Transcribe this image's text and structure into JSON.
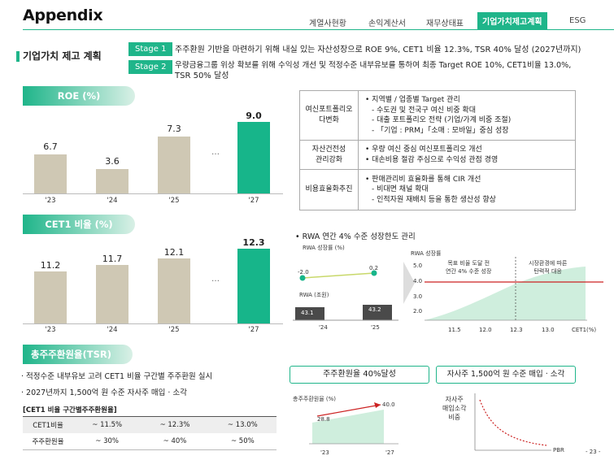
{
  "header": {
    "title": "Appendix",
    "nav": [
      "계열사현황",
      "손익계산서",
      "재무상태표",
      "기업가치제고계획",
      "ESG"
    ],
    "active_index": 3
  },
  "section": {
    "title": "기업가치 제고 계획",
    "stages": [
      {
        "label": "Stage 1",
        "text": "주주환원 기반을 마련하기 위해 내실 있는 자산성장으로 ROE 9%, CET1 비율 12.3%, TSR 40% 달성 (2027년까지)"
      },
      {
        "label": "Stage 2",
        "text_line1": "우량금융그룹 위상 확보를 위해 수익성 개선 및 적정수준 내부유보를 통하여 최종 Target ROE 10%, CET1비율 13.0%,",
        "text_line2": "TSR 50% 달성"
      }
    ]
  },
  "roe": {
    "heading": "ROE (%)",
    "categories": [
      "'23",
      "'24",
      "'25",
      "'27"
    ],
    "values": [
      "6.7",
      "3.6",
      "7.3",
      "9.0"
    ],
    "ellipsis": "…"
  },
  "strategy": [
    {
      "label": [
        "여신포트폴리오",
        "다변화"
      ],
      "items": [
        "• 지역별 / 업종별 Target 관리",
        "- 수도권 및 전국구 여신 비중 확대",
        "- 대출 포트폴리오 전략 (기업/가계 비중 조절)",
        "- 「기업 : PRM」「소매 : 모바일」중심 성장"
      ]
    },
    {
      "label": [
        "자산건전성",
        "관리강화"
      ],
      "items": [
        "• 우량 여신 중심 여신포트폴리오 개선",
        "• 대손비용 절감 주심으로 수익성 관점 경영"
      ]
    },
    {
      "label": [
        "비용효율화추진"
      ],
      "items": [
        "• 판매관리비 효율화를 통해 CIR 개선",
        "- 비대면 채널 확대",
        "- 인적자원 재배치 등을 통한 생산성 향상"
      ]
    }
  ],
  "cet1": {
    "heading": "CET1 비율 (%)",
    "categories": [
      "'23",
      "'24",
      "'25",
      "'27"
    ],
    "values": [
      "11.2",
      "11.7",
      "12.1",
      "12.3"
    ],
    "ellipsis": "…"
  },
  "rwa": {
    "bullet": "• RWA 연간 4% 수준 성장한도 관리",
    "growth_label": "RWA 성장률 (%)",
    "growth_values": [
      "-2.0",
      "0.2"
    ],
    "amount_label": "RWA (조원)",
    "amount_values": [
      "43.1",
      "43.2"
    ],
    "years": [
      "'24",
      "'25"
    ],
    "chart2_label": "RWA 성장률",
    "yticks": [
      "5.0",
      "4.0",
      "3.0",
      "2.0"
    ],
    "xticks": [
      "11.5",
      "12.0",
      "12.3",
      "13.0",
      "CET1(%)"
    ],
    "annot1": [
      "목표 비율 도달 전",
      "연간 4% 수준 성장"
    ],
    "annot2": [
      "시장환경에 따른",
      "탄력적 대응"
    ]
  },
  "tsr": {
    "heading": "총주주환원율(TSR)",
    "bullets": [
      "· 적정수준 내부유보 고려 CET1 비율 구간별 주주환원 실시",
      "· 2027년까지 1,500억 원 수준 자사주 매입 · 소각"
    ],
    "table_title": "[CET1 비율 구간별주주환원율]",
    "rows": [
      {
        "label": "CET1비율",
        "cells": [
          "~ 11.5%",
          "~ 12.3%",
          "~ 13.0%"
        ]
      },
      {
        "label": "주주환원율",
        "cells": [
          "~ 30%",
          "~ 40%",
          "~ 50%"
        ]
      }
    ],
    "box1": "주주환원율 40%달성",
    "chart_label": "총주주환원율 (%)",
    "values": [
      "28.8",
      "40.0"
    ],
    "years": [
      "'23",
      "'27"
    ],
    "box2": "자사주 1,500억 원 수준 매입 · 소각",
    "ylabel": [
      "자사주",
      "매입소각",
      "비중"
    ],
    "xlabel": "PBR"
  },
  "page_number": "- 23 -"
}
